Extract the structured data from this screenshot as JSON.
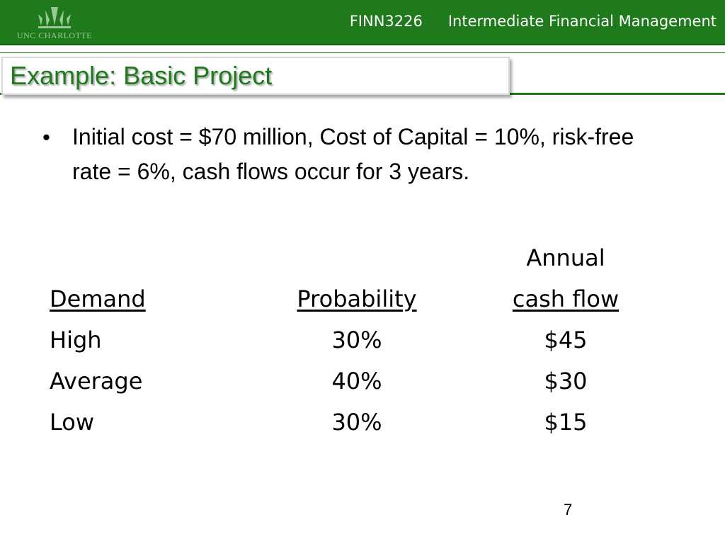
{
  "header": {
    "logo_text": "UNC CHARLOTTE",
    "course_code": "FINN3226",
    "course_name": "Intermediate Financial Management",
    "bar_color": "#1f7a1c"
  },
  "slide": {
    "title": "Example: Basic Project",
    "bullet": "Initial cost = $70 million, Cost of Capital = 10%, risk-free rate = 6%, cash flows occur for 3 years.",
    "page_number": "7"
  },
  "table": {
    "header_top": {
      "cash": "Annual"
    },
    "headers": {
      "demand": "Demand",
      "probability": "Probability",
      "cash": "cash flow"
    },
    "rows": [
      {
        "demand": "High",
        "probability": "30%",
        "cash": "$45"
      },
      {
        "demand": "Average",
        "probability": "40%",
        "cash": "$30"
      },
      {
        "demand": "Low",
        "probability": "30%",
        "cash": "$15"
      }
    ]
  }
}
